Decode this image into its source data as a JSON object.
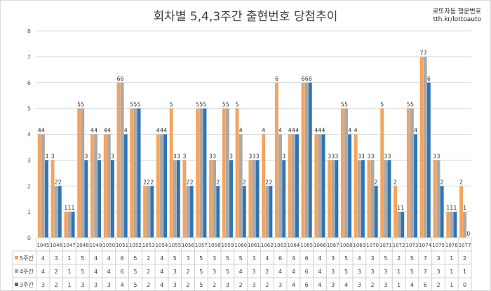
{
  "chart_data": {
    "type": "bar",
    "title": "회차별 5,4,3주간 출현번호 당첨추이",
    "watermark": [
      "로또자동 행운번호",
      "tth.kr/lottoauto"
    ],
    "categories": [
      "1045",
      "1046",
      "1047",
      "1048",
      "1049",
      "1050",
      "1051",
      "1052",
      "1053",
      "1054",
      "1055",
      "1056",
      "1057",
      "1058",
      "1059",
      "1060",
      "1061",
      "1062",
      "1063",
      "1064",
      "1065",
      "1066",
      "1067",
      "1068",
      "1069",
      "1070",
      "1071",
      "1072",
      "1073",
      "1074",
      "1075",
      "1076",
      "1077"
    ],
    "ylim": [
      0,
      8
    ],
    "yticks": [
      0,
      1,
      2,
      3,
      4,
      5,
      6,
      7,
      8
    ],
    "grid": true,
    "legend": "data-table",
    "series": [
      {
        "name": "5주간",
        "color": "#f4a460",
        "values": [
          4,
          3,
          1,
          5,
          4,
          4,
          6,
          5,
          2,
          4,
          5,
          3,
          5,
          3,
          5,
          5,
          3,
          4,
          6,
          4,
          6,
          4,
          3,
          5,
          4,
          3,
          5,
          2,
          5,
          7,
          3,
          1,
          2
        ]
      },
      {
        "name": "4주간",
        "color": "#a9a9a9",
        "values": [
          4,
          2,
          1,
          5,
          4,
          4,
          6,
          5,
          2,
          4,
          3,
          2,
          5,
          3,
          5,
          4,
          3,
          2,
          4,
          4,
          6,
          4,
          3,
          5,
          3,
          3,
          3,
          1,
          5,
          7,
          3,
          1,
          1
        ]
      },
      {
        "name": "3주간",
        "color": "#2e75b6",
        "values": [
          3,
          2,
          1,
          3,
          3,
          3,
          4,
          5,
          2,
          4,
          3,
          2,
          5,
          2,
          3,
          2,
          3,
          2,
          3,
          4,
          6,
          4,
          3,
          4,
          3,
          2,
          3,
          1,
          4,
          6,
          2,
          1,
          0
        ]
      }
    ]
  }
}
